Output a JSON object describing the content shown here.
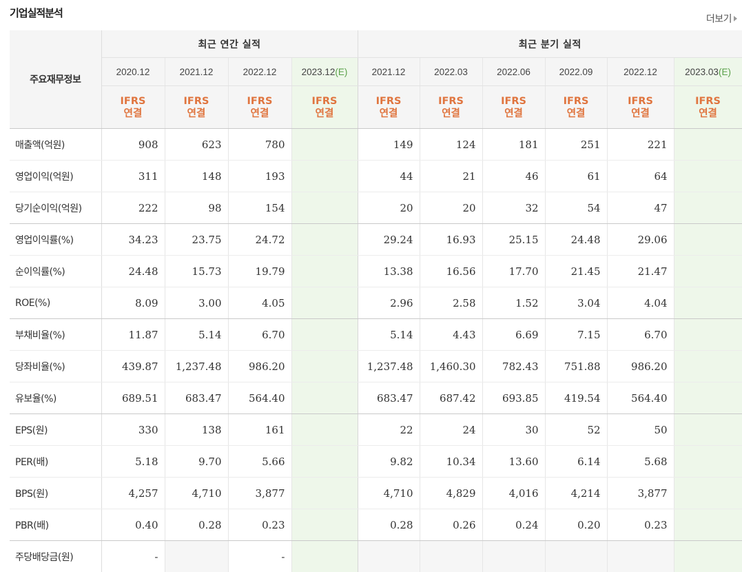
{
  "section": {
    "title": "기업실적분석",
    "more_label": "더보기"
  },
  "table": {
    "corner_label": "주요재무정보",
    "group_annual": "최근 연간 실적",
    "group_quarter": "최근 분기 실적",
    "estimate_mark": "(E)",
    "ifrs_line1": "IFRS",
    "ifrs_line2": "연결",
    "periods": [
      "2020.12",
      "2021.12",
      "2022.12",
      "2023.12",
      "2021.12",
      "2022.03",
      "2022.06",
      "2022.09",
      "2022.12",
      "2023.03"
    ],
    "rows": [
      {
        "label": "매출액(억원)",
        "values": [
          "908",
          "623",
          "780",
          "",
          "149",
          "124",
          "181",
          "251",
          "221",
          ""
        ]
      },
      {
        "label": "영업이익(억원)",
        "values": [
          "311",
          "148",
          "193",
          "",
          "44",
          "21",
          "46",
          "61",
          "64",
          ""
        ]
      },
      {
        "label": "당기순이익(억원)",
        "values": [
          "222",
          "98",
          "154",
          "",
          "20",
          "20",
          "32",
          "54",
          "47",
          ""
        ]
      },
      {
        "label": "영업이익률(%)",
        "values": [
          "34.23",
          "23.75",
          "24.72",
          "",
          "29.24",
          "16.93",
          "25.15",
          "24.48",
          "29.06",
          ""
        ]
      },
      {
        "label": "순이익률(%)",
        "values": [
          "24.48",
          "15.73",
          "19.79",
          "",
          "13.38",
          "16.56",
          "17.70",
          "21.45",
          "21.47",
          ""
        ]
      },
      {
        "label": "ROE(%)",
        "values": [
          "8.09",
          "3.00",
          "4.05",
          "",
          "2.96",
          "2.58",
          "1.52",
          "3.04",
          "4.04",
          ""
        ]
      },
      {
        "label": "부채비율(%)",
        "values": [
          "11.87",
          "5.14",
          "6.70",
          "",
          "5.14",
          "4.43",
          "6.69",
          "7.15",
          "6.70",
          ""
        ]
      },
      {
        "label": "당좌비율(%)",
        "values": [
          "439.87",
          "1,237.48",
          "986.20",
          "",
          "1,237.48",
          "1,460.30",
          "782.43",
          "751.88",
          "986.20",
          ""
        ]
      },
      {
        "label": "유보율(%)",
        "values": [
          "689.51",
          "683.47",
          "564.40",
          "",
          "683.47",
          "687.42",
          "693.85",
          "419.54",
          "564.40",
          ""
        ]
      },
      {
        "label": "EPS(원)",
        "values": [
          "330",
          "138",
          "161",
          "",
          "22",
          "24",
          "30",
          "52",
          "50",
          ""
        ]
      },
      {
        "label": "PER(배)",
        "values": [
          "5.18",
          "9.70",
          "5.66",
          "",
          "9.82",
          "10.34",
          "13.60",
          "6.14",
          "5.68",
          ""
        ]
      },
      {
        "label": "BPS(원)",
        "values": [
          "4,257",
          "4,710",
          "3,877",
          "",
          "4,710",
          "4,829",
          "4,016",
          "4,214",
          "3,877",
          ""
        ]
      },
      {
        "label": "PBR(배)",
        "values": [
          "0.40",
          "0.28",
          "0.23",
          "",
          "0.28",
          "0.26",
          "0.24",
          "0.20",
          "0.23",
          ""
        ]
      },
      {
        "label": "주당배당금(원)",
        "values": [
          "-",
          "",
          "-",
          "",
          "",
          "",
          "",
          "",
          "",
          ""
        ]
      }
    ]
  }
}
